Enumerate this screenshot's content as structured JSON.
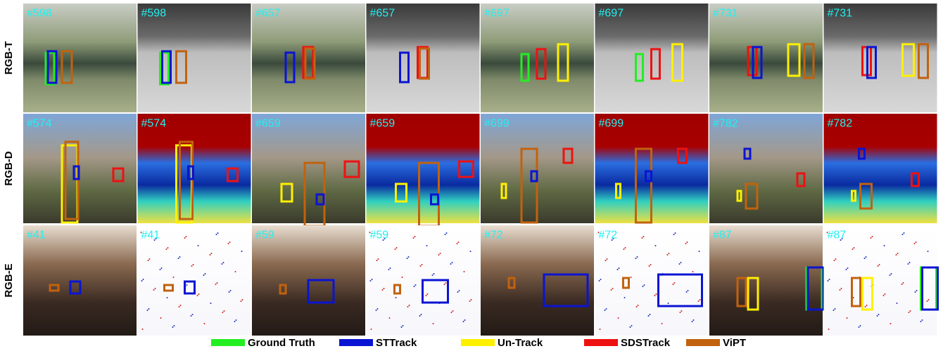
{
  "rows": [
    {
      "label": "RGB-T",
      "frames": [
        "#598",
        "#598",
        "#657",
        "#657",
        "#697",
        "#697",
        "#731",
        "#731"
      ]
    },
    {
      "label": "RGB-D",
      "frames": [
        "#574",
        "#574",
        "#659",
        "#659",
        "#699",
        "#699",
        "#782",
        "#782"
      ]
    },
    {
      "label": "RGB-E",
      "frames": [
        "#41",
        "#41",
        "#59",
        "#59",
        "#72",
        "#72",
        "#87",
        "#87"
      ]
    }
  ],
  "legend": [
    {
      "name": "Ground Truth",
      "color": "#22ee22"
    },
    {
      "name": "STTrack",
      "color": "#0a14d2"
    },
    {
      "name": "Un-Track",
      "color": "#fff000"
    },
    {
      "name": "SDSTrack",
      "color": "#ee1111"
    },
    {
      "name": "ViPT",
      "color": "#c2620e"
    }
  ]
}
